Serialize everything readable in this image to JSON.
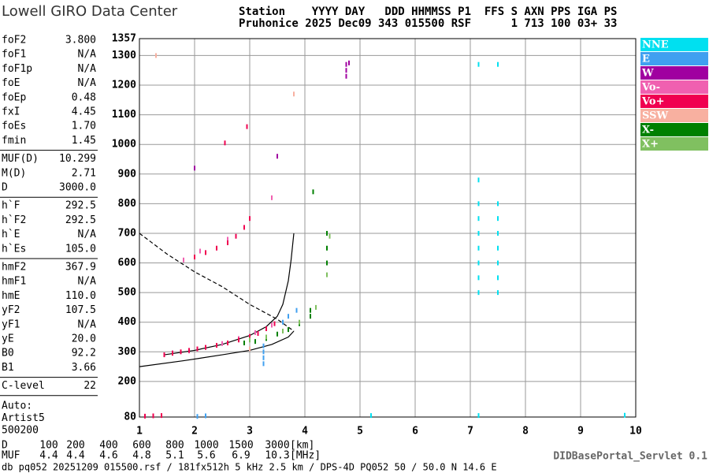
{
  "header": {
    "logo": "Lowell GIRO Data Center",
    "line1": "Station    YYYY DAY   DDD HHMMSS P1  FFS S AXN PPS IGA PS",
    "line2": "Pruhonice 2025 Dec09 343 015500 RSF      1 713 100 03+ 33"
  },
  "params": {
    "groups": [
      [
        [
          "foF2",
          "3.800"
        ],
        [
          "foF1",
          "N/A"
        ],
        [
          "foF1p",
          "N/A"
        ],
        [
          "foE",
          "N/A"
        ],
        [
          "foEp",
          "0.48"
        ],
        [
          "fxI",
          "4.45"
        ],
        [
          "foEs",
          "1.70"
        ],
        [
          "fmin",
          "1.45"
        ]
      ],
      [
        [
          "MUF(D)",
          "10.299"
        ],
        [
          "M(D)",
          "2.71"
        ],
        [
          "D",
          "3000.0"
        ]
      ],
      [
        [
          "h`F",
          "292.5"
        ],
        [
          "h`F2",
          "292.5"
        ],
        [
          "h`E",
          "N/A"
        ],
        [
          "h`Es",
          "105.0"
        ]
      ],
      [
        [
          "hmF2",
          "367.9"
        ],
        [
          "hmF1",
          "N/A"
        ],
        [
          "hmE",
          "110.0"
        ],
        [
          "yF2",
          "107.5"
        ],
        [
          "yF1",
          "N/A"
        ],
        [
          "yE",
          "20.0"
        ],
        [
          "B0",
          "92.2"
        ],
        [
          "B1",
          "3.66"
        ]
      ],
      [
        [
          "C-level",
          "22"
        ]
      ]
    ],
    "auto": [
      "Auto:",
      "Artist5",
      "500200"
    ]
  },
  "muf_table": {
    "rows": [
      {
        "label": "D",
        "values": [
          "100",
          "200",
          "400",
          "600",
          "800",
          "1000",
          "1500",
          "3000"
        ],
        "unit": "[km]"
      },
      {
        "label": "MUF",
        "values": [
          "4.4",
          "4.4",
          "4.6",
          "4.8",
          "5.1",
          "5.6",
          "6.9",
          "10.3"
        ],
        "unit": "[MHz]"
      }
    ]
  },
  "footer": {
    "servlet": "DIDBasePortal_Servlet 0.1",
    "info": "db pq052 20251209 015500.rsf / 181fx512h 5 kHz 2.5 km / DPS-4D PQ052 50 / 50.0 N 14.6 E"
  },
  "chart_data": {
    "type": "scatter",
    "xlim": [
      1,
      10
    ],
    "xticks": [
      1,
      2,
      3,
      4,
      5,
      6,
      7,
      8,
      9,
      10
    ],
    "ylim": [
      80,
      1357
    ],
    "yticks": [
      80,
      200,
      300,
      400,
      500,
      600,
      700,
      800,
      900,
      1000,
      1100,
      1200,
      1300,
      1357
    ],
    "grid": true,
    "series": [
      {
        "name": "NNE",
        "color": "#00e0f0",
        "x": [
          7.15,
          7.15,
          7.15,
          7.15,
          7.15,
          7.15,
          7.15,
          7.15,
          7.5,
          7.5,
          7.5,
          7.5,
          7.5,
          7.5,
          7.5,
          7.15,
          7.5,
          5.2,
          7.15,
          9.8
        ],
        "values": [
          500,
          550,
          600,
          650,
          700,
          750,
          800,
          880,
          500,
          550,
          600,
          650,
          700,
          750,
          800,
          1270,
          1270,
          85,
          85,
          86
        ]
      },
      {
        "name": "E",
        "color": "#40a0f0",
        "x": [
          3.25,
          3.25,
          3.25,
          3.25,
          3.6,
          3.7,
          3.85,
          2.05,
          2.2
        ],
        "values": [
          260,
          280,
          300,
          320,
          400,
          420,
          440,
          82,
          84
        ]
      },
      {
        "name": "W",
        "color": "#a000a0",
        "x": [
          4.75,
          4.75,
          4.75,
          4.8,
          3.5,
          2.0
        ],
        "values": [
          1230,
          1250,
          1270,
          1275,
          960,
          920
        ]
      },
      {
        "name": "Vo-",
        "color": "#f060b0",
        "x": [
          1.6,
          1.9,
          2.2,
          2.5,
          2.8,
          3.1,
          3.4,
          1.8,
          2.1,
          2.6,
          3.4
        ],
        "values": [
          297,
          303,
          315,
          328,
          345,
          365,
          390,
          610,
          640,
          680,
          820
        ]
      },
      {
        "name": "Vo+",
        "color": "#f00050",
        "x": [
          1.45,
          1.6,
          1.75,
          1.9,
          2.05,
          2.2,
          2.4,
          2.6,
          2.8,
          3.0,
          3.15,
          3.3,
          3.45,
          2.0,
          2.2,
          2.4,
          2.6,
          2.75,
          2.9,
          3.0,
          1.1,
          1.25,
          1.4,
          2.55,
          2.95
        ],
        "values": [
          290,
          295,
          300,
          305,
          310,
          315,
          322,
          330,
          340,
          352,
          362,
          378,
          395,
          620,
          635,
          650,
          668,
          690,
          720,
          750,
          83,
          84,
          85,
          1005,
          1060
        ]
      },
      {
        "name": "SSW",
        "color": "#f8b0a0",
        "x": [
          3.0,
          3.8,
          1.3
        ],
        "values": [
          310,
          1170,
          1300
        ]
      },
      {
        "name": "X-",
        "color": "#008000",
        "x": [
          2.9,
          3.1,
          3.3,
          3.5,
          3.7,
          3.9,
          4.1,
          4.1,
          4.4,
          4.4,
          4.4,
          4.15
        ],
        "values": [
          330,
          335,
          345,
          360,
          375,
          395,
          420,
          440,
          600,
          650,
          700,
          840
        ]
      },
      {
        "name": "X+",
        "color": "#80c060",
        "x": [
          3.0,
          3.3,
          3.6,
          3.9,
          4.2,
          4.4,
          4.45
        ],
        "values": [
          340,
          350,
          370,
          400,
          450,
          560,
          690
        ]
      }
    ],
    "curves": [
      {
        "x": [
          1.45,
          2.0,
          2.5,
          3.0,
          3.3,
          3.5,
          3.6,
          3.7,
          3.75,
          3.8
        ],
        "values": [
          290,
          305,
          325,
          355,
          385,
          420,
          460,
          540,
          610,
          700
        ],
        "dash": false
      },
      {
        "x": [
          1.0,
          1.8,
          2.5,
          3.0,
          3.4,
          3.7,
          3.8
        ],
        "values": [
          250,
          270,
          290,
          305,
          325,
          350,
          370
        ],
        "dash": false
      },
      {
        "x": [
          1.0,
          1.5,
          2.0,
          2.5,
          3.0,
          3.5,
          3.8
        ],
        "values": [
          700,
          630,
          570,
          520,
          460,
          410,
          370
        ],
        "dash": true
      }
    ]
  }
}
